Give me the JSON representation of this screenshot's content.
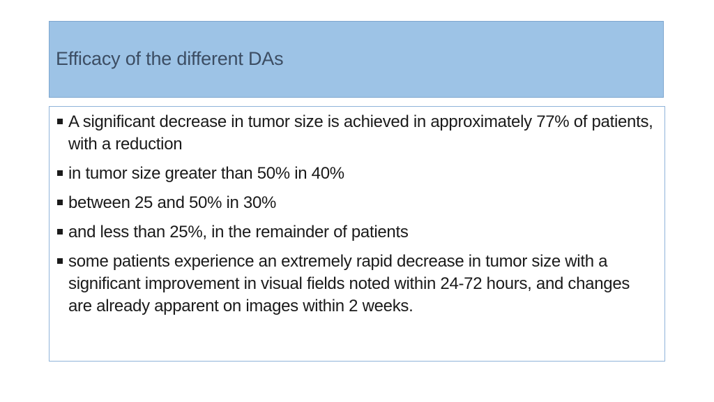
{
  "slide": {
    "title": "Efficacy of the different DAs",
    "bullets": [
      "A significant decrease in tumor size is achieved in approximately 77% of patients, with a reduction",
      "in tumor size greater than 50% in 40%",
      "between 25 and 50% in 30%",
      "and less than 25%, in the remainder of patients",
      "some patients experience an extremely rapid decrease in tumor size with a significant improvement in visual fields noted within 24-72 hours, and changes are already apparent on images within 2 weeks."
    ]
  },
  "colors": {
    "title_background": "#9dc3e6",
    "title_text": "#3c4d63",
    "content_border": "#8fb3d9",
    "body_text": "#1a1a1a"
  },
  "icons": {
    "bullet": "square-bullet-icon"
  }
}
